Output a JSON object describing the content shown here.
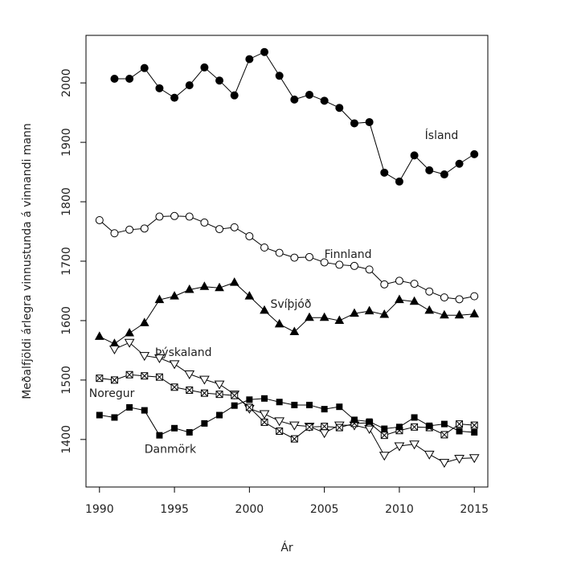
{
  "chart_data": {
    "type": "line",
    "title": "",
    "xlabel": "Ár",
    "ylabel": "Meðalfjöldi árlegra vinnustunda á vinnandi mann",
    "xlim": [
      1989.1,
      2015.9
    ],
    "ylim": [
      1320,
      2080
    ],
    "xticks": [
      1990,
      1995,
      2000,
      2005,
      2010,
      2015
    ],
    "yticks": [
      1400,
      1500,
      1600,
      1700,
      1800,
      1900,
      2000
    ],
    "grid": false,
    "legend": "none",
    "series": [
      {
        "name": "Ísland",
        "marker": "filled-circle",
        "x": [
          1991,
          1992,
          1993,
          1994,
          1995,
          1996,
          1997,
          1998,
          1999,
          2000,
          2001,
          2002,
          2003,
          2004,
          2005,
          2006,
          2007,
          2008,
          2009,
          2010,
          2011,
          2012,
          2013,
          2014,
          2015
        ],
        "values": [
          2007,
          2007,
          2025,
          1991,
          1975,
          1996,
          2026,
          2004,
          1979,
          2040,
          2052,
          2012,
          1972,
          1980,
          1970,
          1958,
          1932,
          1934,
          1849,
          1834,
          1878,
          1853,
          1846,
          1864,
          1880
        ]
      },
      {
        "name": "Finnland",
        "marker": "open-circle",
        "x": [
          1990,
          1991,
          1992,
          1993,
          1994,
          1995,
          1996,
          1997,
          1998,
          1999,
          2000,
          2001,
          2002,
          2003,
          2004,
          2005,
          2006,
          2007,
          2008,
          2009,
          2010,
          2011,
          2012,
          2013,
          2014,
          2015
        ],
        "values": [
          1769,
          1747,
          1753,
          1755,
          1775,
          1776,
          1775,
          1765,
          1754,
          1757,
          1742,
          1723,
          1714,
          1706,
          1707,
          1698,
          1694,
          1692,
          1686,
          1661,
          1667,
          1662,
          1649,
          1639,
          1636,
          1641
        ]
      },
      {
        "name": "Svíþjóð",
        "marker": "filled-triangle",
        "x": [
          1990,
          1991,
          1992,
          1993,
          1994,
          1995,
          1996,
          1997,
          1998,
          1999,
          2000,
          2001,
          2002,
          2003,
          2004,
          2005,
          2006,
          2007,
          2008,
          2009,
          2010,
          2011,
          2012,
          2013,
          2014,
          2015
        ],
        "values": [
          1573,
          1561,
          1579,
          1596,
          1635,
          1641,
          1652,
          1657,
          1655,
          1664,
          1641,
          1617,
          1594,
          1581,
          1605,
          1605,
          1600,
          1612,
          1616,
          1610,
          1635,
          1632,
          1617,
          1609,
          1609,
          1611
        ]
      },
      {
        "name": "Þýskaland",
        "marker": "open-triangle-down",
        "x": [
          1991,
          1992,
          1993,
          1994,
          1995,
          1996,
          1997,
          1998,
          1999,
          2000,
          2001,
          2002,
          2003,
          2004,
          2005,
          2006,
          2007,
          2008,
          2009,
          2010,
          2011,
          2012,
          2013,
          2014,
          2015
        ],
        "values": [
          1552,
          1563,
          1541,
          1537,
          1527,
          1510,
          1501,
          1493,
          1476,
          1452,
          1443,
          1431,
          1424,
          1422,
          1411,
          1424,
          1424,
          1418,
          1373,
          1389,
          1392,
          1375,
          1361,
          1368,
          1369
        ]
      },
      {
        "name": "Noregur",
        "marker": "crossed-square",
        "x": [
          1990,
          1991,
          1992,
          1993,
          1994,
          1995,
          1996,
          1997,
          1998,
          1999,
          2000,
          2001,
          2002,
          2003,
          2004,
          2005,
          2006,
          2007,
          2008,
          2009,
          2010,
          2011,
          2012,
          2013,
          2014,
          2015
        ],
        "values": [
          1503,
          1500,
          1509,
          1507,
          1505,
          1488,
          1483,
          1478,
          1476,
          1474,
          1454,
          1429,
          1414,
          1401,
          1421,
          1422,
          1420,
          1427,
          1428,
          1407,
          1415,
          1421,
          1420,
          1408,
          1426,
          1424
        ]
      },
      {
        "name": "Danmörk",
        "marker": "filled-square",
        "x": [
          1990,
          1991,
          1992,
          1993,
          1994,
          1995,
          1996,
          1997,
          1998,
          1999,
          2000,
          2001,
          2002,
          2003,
          2004,
          2005,
          2006,
          2007,
          2008,
          2009,
          2010,
          2011,
          2012,
          2013,
          2014,
          2015
        ],
        "values": [
          1441,
          1437,
          1454,
          1449,
          1407,
          1419,
          1412,
          1427,
          1441,
          1457,
          1467,
          1469,
          1463,
          1458,
          1458,
          1451,
          1455,
          1433,
          1430,
          1418,
          1421,
          1437,
          1423,
          1426,
          1414,
          1412
        ]
      }
    ]
  }
}
